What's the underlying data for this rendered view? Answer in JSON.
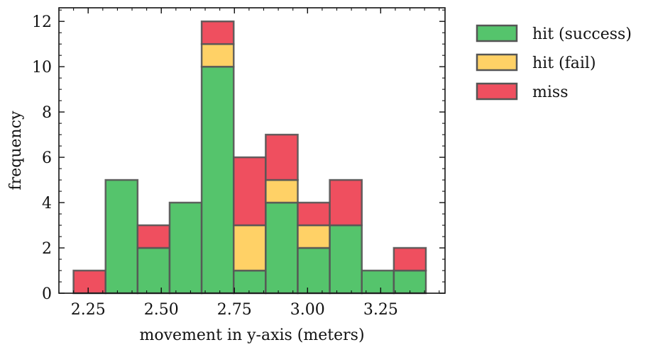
{
  "chart_data": {
    "type": "bar",
    "stacked": true,
    "xlabel": "movement in y-axis (meters)",
    "ylabel": "frequency",
    "xlim": [
      2.15,
      3.47
    ],
    "ylim": [
      0,
      12.6
    ],
    "xticks": [
      2.25,
      2.5,
      2.75,
      3.0,
      3.25
    ],
    "xtick_labels": [
      "2.25",
      "2.50",
      "2.75",
      "3.00",
      "3.25"
    ],
    "yticks": [
      0,
      2,
      4,
      6,
      8,
      10,
      12
    ],
    "ytick_labels": [
      "0",
      "2",
      "4",
      "6",
      "8",
      "10",
      "12"
    ],
    "bin_edges": [
      2.2,
      2.3095,
      2.419,
      2.5285,
      2.638,
      2.7475,
      2.857,
      2.9665,
      3.076,
      3.1855,
      3.295,
      3.4045
    ],
    "series": [
      {
        "name": "hit (success)",
        "color": "#55c46c",
        "values": [
          0,
          5,
          2,
          4,
          10,
          1,
          4,
          2,
          3,
          1,
          1
        ]
      },
      {
        "name": "hit (fail)",
        "color": "#ffd166",
        "values": [
          0,
          0,
          0,
          0,
          1,
          2,
          1,
          1,
          0,
          0,
          0
        ]
      },
      {
        "name": "miss",
        "color": "#ef4f5f",
        "values": [
          1,
          0,
          1,
          0,
          1,
          3,
          2,
          1,
          2,
          0,
          1
        ]
      }
    ],
    "legend_position": "outside-right-top",
    "grid": false
  }
}
